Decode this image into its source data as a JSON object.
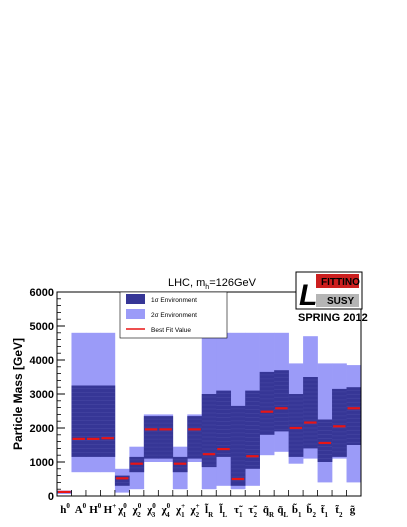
{
  "chart_data": {
    "type": "bar",
    "title_main": "LHC, m",
    "title_sub": "h",
    "title_value": "=126GeV",
    "ylabel": "Particle Mass [GeV]",
    "ylim": [
      0,
      6000
    ],
    "yticks": [
      0,
      1000,
      2000,
      3000,
      4000,
      5000,
      6000
    ],
    "categories": [
      {
        "base": "h",
        "sup": "0",
        "sub": ""
      },
      {
        "base": "A",
        "sup": "0",
        "sub": ""
      },
      {
        "base": "H",
        "sup": "0",
        "sub": ""
      },
      {
        "base": "H",
        "sup": "+",
        "sub": ""
      },
      {
        "base": "χ",
        "sup": "0",
        "sub": "1"
      },
      {
        "base": "χ",
        "sup": "0",
        "sub": "2"
      },
      {
        "base": "χ",
        "sup": "0",
        "sub": "3"
      },
      {
        "base": "χ",
        "sup": "0",
        "sub": "4"
      },
      {
        "base": "χ",
        "sup": "+",
        "sub": "1"
      },
      {
        "base": "χ",
        "sup": "+",
        "sub": "2"
      },
      {
        "base": "l̃",
        "sup": "",
        "sub": "R"
      },
      {
        "base": "l̃",
        "sup": "",
        "sub": "L"
      },
      {
        "base": "τ̃",
        "sup": "",
        "sub": "1"
      },
      {
        "base": "τ̃",
        "sup": "",
        "sub": "2"
      },
      {
        "base": "q̃",
        "sup": "",
        "sub": "R"
      },
      {
        "base": "q̃",
        "sup": "",
        "sub": "L"
      },
      {
        "base": "b̃",
        "sup": "",
        "sub": "1"
      },
      {
        "base": "b̃",
        "sup": "",
        "sub": "2"
      },
      {
        "base": "t̃",
        "sup": "",
        "sub": "1"
      },
      {
        "base": "t̃",
        "sup": "",
        "sub": "2"
      },
      {
        "base": "g̃",
        "sup": "",
        "sub": ""
      }
    ],
    "series": [
      {
        "name": "2σ Environment",
        "ranges": [
          [
            60,
            160
          ],
          [
            700,
            4800
          ],
          [
            700,
            4800
          ],
          [
            700,
            4800
          ],
          [
            100,
            800
          ],
          [
            200,
            1450
          ],
          [
            1000,
            2400
          ],
          [
            1000,
            2400
          ],
          [
            200,
            1450
          ],
          [
            1000,
            2400
          ],
          [
            200,
            4800
          ],
          [
            300,
            4800
          ],
          [
            200,
            4800
          ],
          [
            300,
            4800
          ],
          [
            1200,
            4800
          ],
          [
            1300,
            4800
          ],
          [
            950,
            3900
          ],
          [
            1100,
            4700
          ],
          [
            400,
            3900
          ],
          [
            1100,
            3900
          ],
          [
            400,
            3850
          ]
        ]
      },
      {
        "name": "1σ Environment",
        "ranges": [
          [
            100,
            140
          ],
          [
            1150,
            3250
          ],
          [
            1150,
            3250
          ],
          [
            1150,
            3250
          ],
          [
            300,
            600
          ],
          [
            700,
            1150
          ],
          [
            1100,
            2350
          ],
          [
            1100,
            2350
          ],
          [
            700,
            1150
          ],
          [
            1100,
            2350
          ],
          [
            850,
            3000
          ],
          [
            1150,
            3100
          ],
          [
            300,
            2650
          ],
          [
            800,
            3100
          ],
          [
            1800,
            3650
          ],
          [
            1900,
            3700
          ],
          [
            1150,
            3000
          ],
          [
            1400,
            3500
          ],
          [
            1000,
            2250
          ],
          [
            1150,
            3150
          ],
          [
            1500,
            3200
          ]
        ]
      },
      {
        "name": "Best Fit Value",
        "values": [
          120,
          1680,
          1680,
          1700,
          520,
          950,
          1960,
          1960,
          950,
          1960,
          1230,
          1380,
          500,
          1170,
          2480,
          2580,
          2000,
          2160,
          1560,
          2050,
          2580
        ]
      }
    ],
    "legend": {
      "position": "top-left",
      "entries": [
        "1σ Environment",
        "2σ Environment",
        "Best Fit Value"
      ]
    },
    "colors": {
      "one_sigma": "#363696",
      "two_sigma": "#9b9bf8",
      "best_fit": "#e81515",
      "stripe": "#5858b0"
    }
  },
  "logo": {
    "letter": "L",
    "top_text": "FITTINO",
    "bottom_text": "SUSY",
    "caption": "SPRING 2012",
    "colors": {
      "red": "#cc1f1f",
      "grey": "#b5b5b5"
    }
  }
}
